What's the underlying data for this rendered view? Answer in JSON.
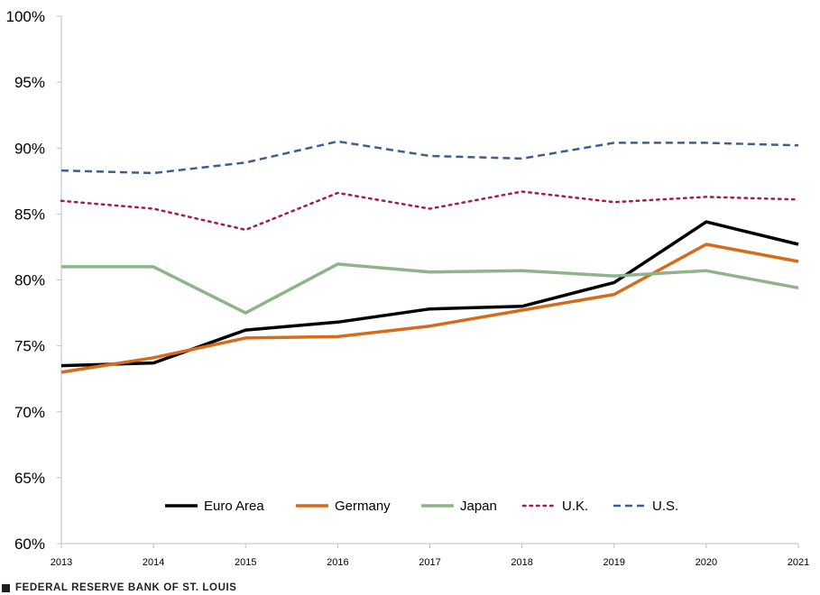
{
  "chart_data": {
    "type": "line",
    "title": "",
    "xlabel": "",
    "ylabel": "",
    "x": [
      "2013",
      "2014",
      "2015",
      "2016",
      "2017",
      "2018",
      "2019",
      "2020",
      "2021"
    ],
    "ylim": [
      60,
      100
    ],
    "yticks": [
      60,
      65,
      70,
      75,
      80,
      85,
      90,
      95,
      100
    ],
    "ytick_labels": [
      "60%",
      "65%",
      "70%",
      "75%",
      "80%",
      "85%",
      "90%",
      "95%",
      "100%"
    ],
    "grid": false,
    "legend_position": "bottom-center",
    "series": [
      {
        "name": "Euro Area",
        "color": "#000000",
        "style": "solid",
        "values": [
          73.5,
          73.7,
          76.2,
          76.8,
          77.8,
          78.0,
          79.8,
          84.4,
          82.7
        ]
      },
      {
        "name": "Germany",
        "color": "#d66b1b",
        "style": "solid",
        "values": [
          73.0,
          74.1,
          75.6,
          75.7,
          76.5,
          77.7,
          78.9,
          82.7,
          81.4
        ]
      },
      {
        "name": "Japan",
        "color": "#8fb38a",
        "style": "solid",
        "values": [
          81.0,
          81.0,
          77.5,
          81.2,
          80.6,
          80.7,
          80.3,
          80.7,
          79.4
        ]
      },
      {
        "name": "U.K.",
        "color": "#a51c46",
        "style": "dotted",
        "values": [
          86.0,
          85.4,
          83.8,
          86.6,
          85.4,
          86.7,
          85.9,
          86.3,
          86.1
        ]
      },
      {
        "name": "U.S.",
        "color": "#3d5f8c",
        "style": "dashed",
        "values": [
          88.3,
          88.1,
          88.9,
          90.5,
          89.4,
          89.2,
          90.4,
          90.4,
          90.2
        ]
      }
    ]
  },
  "footer": {
    "source": "FEDERAL RESERVE BANK OF ST. LOUIS"
  }
}
